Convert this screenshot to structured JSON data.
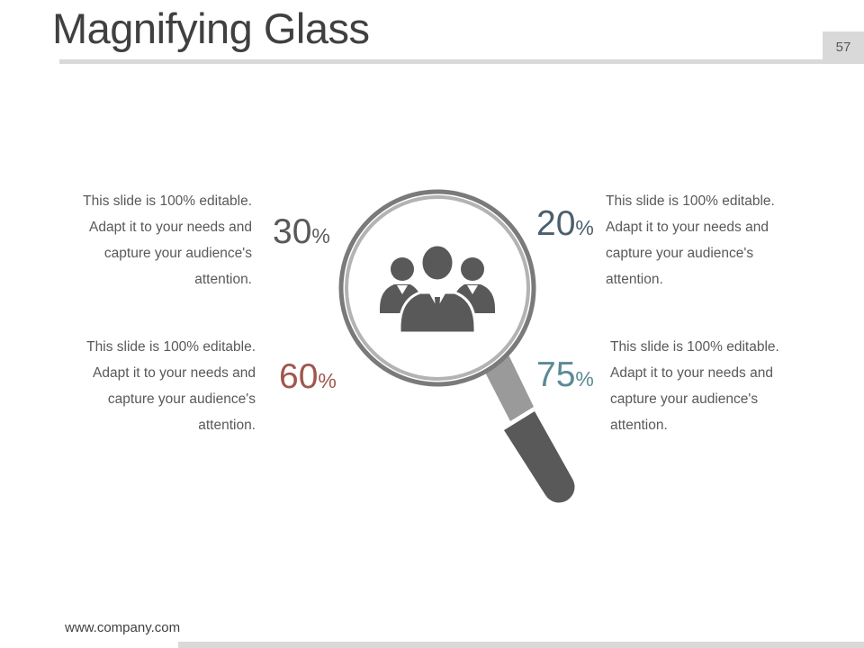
{
  "slide": {
    "title": "Magnifying Glass",
    "page_number": "57",
    "footer_url": "www.company.com"
  },
  "stats": [
    {
      "value": "30",
      "unit": "%",
      "color": "#595959",
      "text": [
        "This slide is 100% editable.",
        "Adapt it to your needs and",
        "capture your audience's",
        "attention."
      ]
    },
    {
      "value": "20",
      "unit": "%",
      "color": "#4b5f6d",
      "text": [
        "This slide is 100% editable.",
        "Adapt it to your needs and",
        "capture your audience's",
        "attention."
      ]
    },
    {
      "value": "60",
      "unit": "%",
      "color": "#a0564c",
      "text": [
        "This slide is 100% editable.",
        "Adapt it to your needs and",
        "capture your audience's",
        "attention."
      ]
    },
    {
      "value": "75",
      "unit": "%",
      "color": "#5a8a96",
      "text": [
        "This slide is 100% editable.",
        "Adapt it to your needs and",
        "capture your audience's",
        "attention."
      ]
    }
  ],
  "icons": {
    "center": "team-icon",
    "main": "magnifying-glass-icon"
  }
}
